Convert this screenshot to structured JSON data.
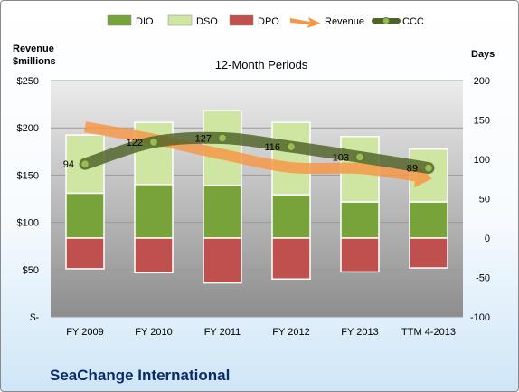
{
  "chart_data": {
    "type": "bar",
    "title": "12-Month Periods",
    "company": "SeaChange International",
    "left_axis_label": [
      "Revenue",
      "$millions"
    ],
    "right_axis_label": "Days",
    "categories": [
      "FY 2009",
      "FY 2010",
      "FY 2011",
      "FY 2012",
      "FY 2013",
      "TTM 4-2013"
    ],
    "left_ticks": [
      "$250",
      "$200",
      "$150",
      "$100",
      "$50",
      "$-"
    ],
    "left_range": [
      0,
      250
    ],
    "right_ticks": [
      "200",
      "150",
      "100",
      "50",
      "0",
      "-50",
      "-100"
    ],
    "right_range": [
      -100,
      200
    ],
    "grid": true,
    "legend_position": "top",
    "series": [
      {
        "name": "DIO",
        "color": "#77a33a",
        "values": [
          57,
          68,
          67,
          55,
          46,
          46
        ]
      },
      {
        "name": "DSO",
        "color": "#cfe6a2",
        "values": [
          74,
          79,
          95,
          92,
          83,
          67
        ]
      },
      {
        "name": "DPO",
        "color": "#c0504d",
        "values": [
          -39,
          -44,
          -57,
          -52,
          -43,
          -38
        ]
      },
      {
        "name": "Revenue",
        "color": "#f79646",
        "values": [
          201,
          188,
          172,
          158,
          157,
          147
        ]
      },
      {
        "name": "CCC",
        "color": "#4f6228",
        "values": [
          94,
          122,
          127,
          116,
          103,
          89
        ]
      }
    ],
    "ccc_labels": [
      "94",
      "122",
      "127",
      "116",
      "103",
      "89"
    ]
  }
}
